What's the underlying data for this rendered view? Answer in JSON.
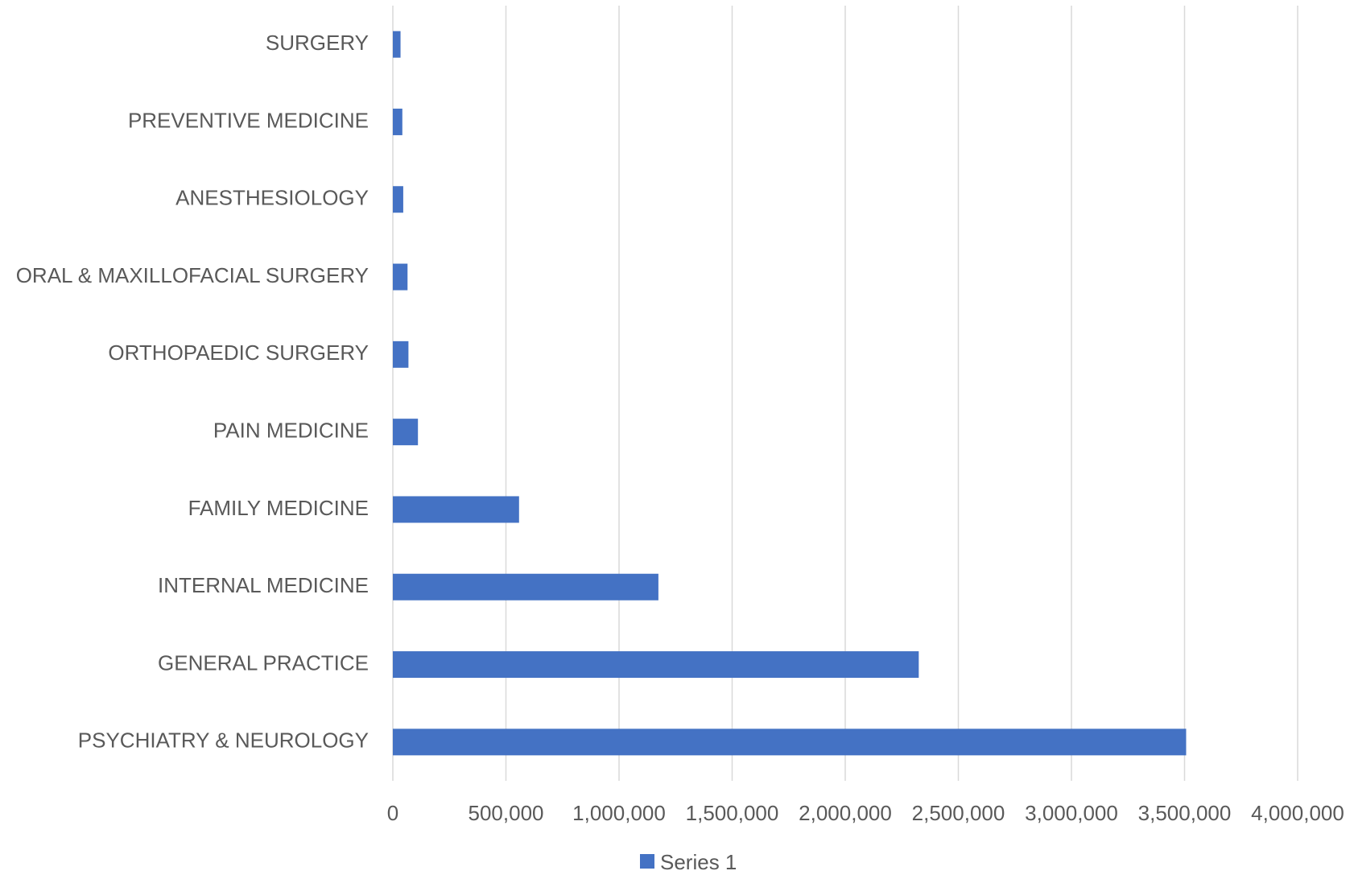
{
  "chart_data": {
    "type": "barh",
    "categories": [
      "SURGERY",
      "PREVENTIVE MEDICINE",
      "ANESTHESIOLOGY",
      "ORAL & MAXILLOFACIAL SURGERY",
      "ORTHOPAEDIC SURGERY",
      "PAIN MEDICINE",
      "FAMILY MEDICINE",
      "INTERNAL MEDICINE",
      "GENERAL PRACTICE",
      "PSYCHIATRY & NEUROLOGY"
    ],
    "series": [
      {
        "name": "Series 1",
        "color": "#4472c4",
        "values": [
          34000,
          42000,
          46000,
          65000,
          69000,
          111000,
          558000,
          1174000,
          2325000,
          3507000
        ]
      }
    ],
    "xlim": [
      0,
      4000000
    ],
    "xticks": [
      0,
      {
        "value": 500000,
        "label": "500,000"
      },
      {
        "value": 1000000,
        "label": "1,000,000"
      },
      {
        "value": 1500000,
        "label": "1,500,000"
      },
      {
        "value": 2000000,
        "label": "2,000,000"
      },
      {
        "value": 2500000,
        "label": "2,500,000"
      },
      {
        "value": 3000000,
        "label": "3,000,000"
      },
      {
        "value": 3500000,
        "label": "3,500,000"
      },
      {
        "value": 4000000,
        "label": "4,000,000"
      }
    ],
    "grid": true
  }
}
